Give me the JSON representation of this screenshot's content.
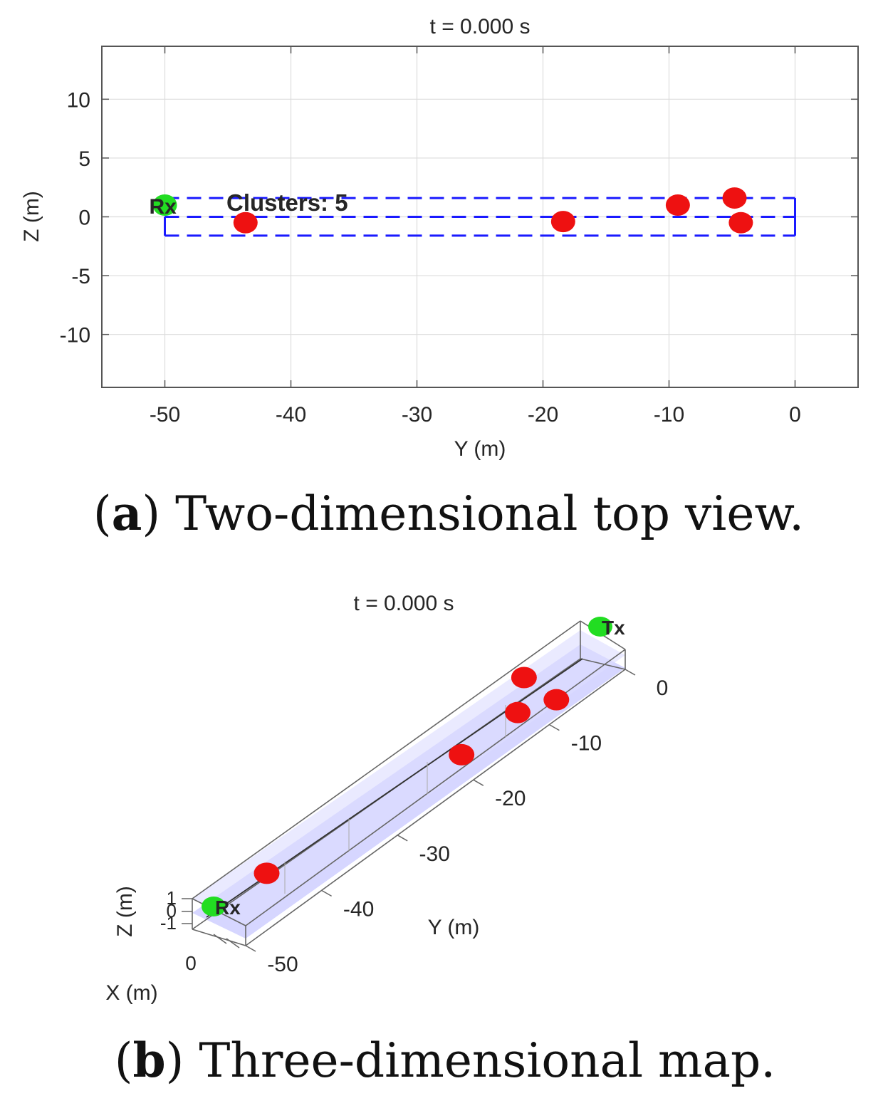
{
  "chart_data": [
    {
      "type": "scatter",
      "panel": "a",
      "caption_letter": "a",
      "caption_text": " Two-dimensional top view.",
      "title": "t = 0.000 s",
      "xlabel": "Y (m)",
      "ylabel": "Z (m)",
      "xlim": [
        -55,
        5
      ],
      "ylim": [
        -14.5,
        14.5
      ],
      "xticks": [
        -50,
        -40,
        -30,
        -20,
        -10,
        0
      ],
      "yticks": [
        -10,
        -5,
        0,
        5,
        10
      ],
      "grid": true,
      "annotation": "Clusters: 5",
      "nodes": [
        {
          "label": "Rx",
          "y": -50,
          "z": 1.0,
          "color": "#22dd22"
        }
      ],
      "clusters": {
        "color": "#ee1111",
        "points": [
          {
            "y": -43.6,
            "z": -0.5
          },
          {
            "y": -18.4,
            "z": -0.4
          },
          {
            "y": -9.3,
            "z": 1.0
          },
          {
            "y": -4.8,
            "z": 1.6
          },
          {
            "y": -4.3,
            "z": -0.5
          }
        ]
      },
      "corridor": {
        "color": "#1a1aff",
        "y_range": [
          -50,
          0
        ],
        "z_levels": [
          -1.6,
          0,
          1.6
        ]
      }
    },
    {
      "type": "scatter3d",
      "panel": "b",
      "caption_letter": "b",
      "caption_text": " Three-dimensional map.",
      "title": "t = 0.000 s",
      "xlabel": "X (m)",
      "ylabel": "Y (m)",
      "zlabel": "Z (m)",
      "xticks": [
        0
      ],
      "yticks": [
        0,
        -10,
        -20,
        -30,
        -40,
        -50
      ],
      "zticks": [
        1,
        0,
        -1
      ],
      "ylim": [
        -50,
        0
      ],
      "nodes": [
        {
          "label": "Tx",
          "y": 0,
          "color": "#22dd22"
        },
        {
          "label": "Rx",
          "y": -50,
          "color": "#22dd22"
        }
      ],
      "clusters": {
        "color": "#ee1111",
        "y_values": [
          -4.8,
          -4.3,
          -9.3,
          -18.4,
          -43.6
        ]
      }
    }
  ]
}
